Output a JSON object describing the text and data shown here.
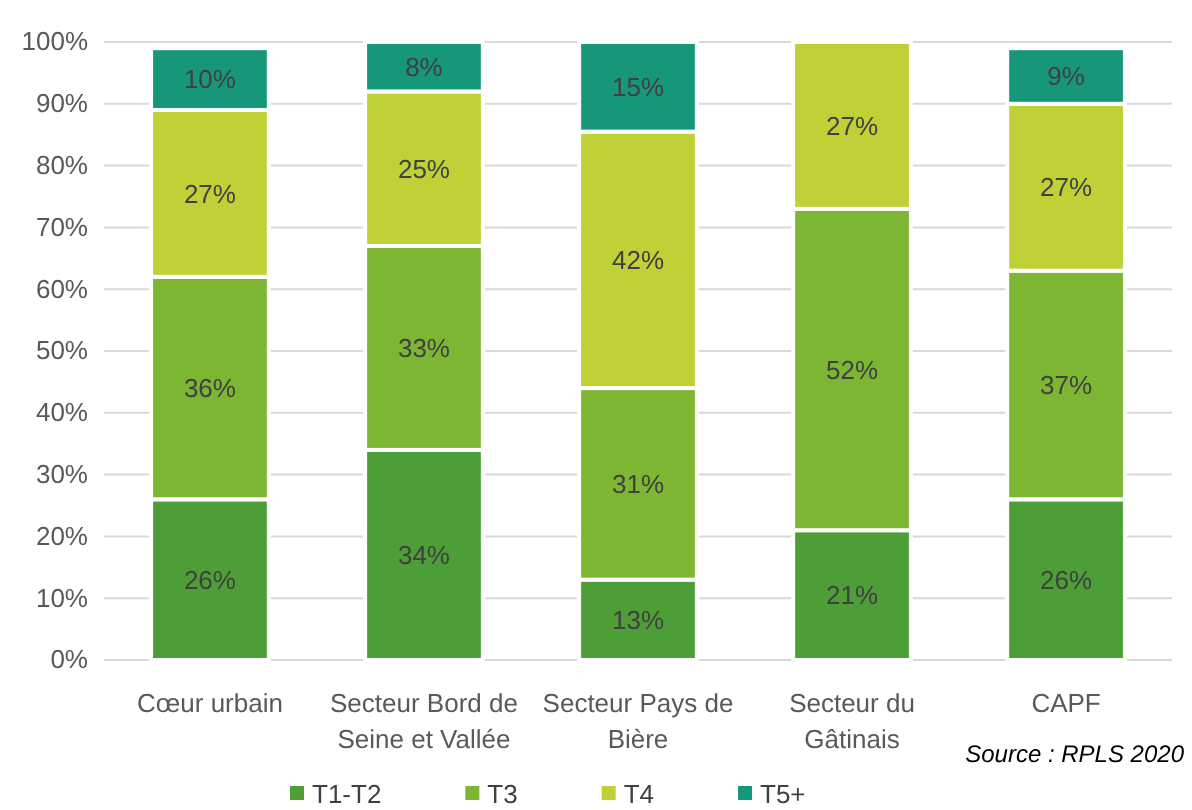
{
  "chart_data": {
    "type": "bar",
    "stacked": true,
    "categories": [
      "Cœur urbain",
      "Secteur Bord de Seine et Vallée",
      "Secteur Pays de Bière",
      "Secteur du Gâtinais",
      "CAPF"
    ],
    "series": [
      {
        "name": "T1-T2",
        "color": "#4e9e37",
        "values": [
          26,
          34,
          13,
          21,
          26
        ],
        "value_labels": [
          "26%",
          "34%",
          "13%",
          "21%",
          "26%"
        ]
      },
      {
        "name": "T3",
        "color": "#7db632",
        "values": [
          36,
          33,
          31,
          52,
          37
        ],
        "value_labels": [
          "36%",
          "33%",
          "31%",
          "52%",
          "37%"
        ]
      },
      {
        "name": "T4",
        "color": "#bfd137",
        "values": [
          27,
          25,
          41.5,
          27,
          27
        ],
        "value_labels": [
          "27%",
          "25%",
          "42%",
          "27%",
          "27%"
        ]
      },
      {
        "name": "T5+",
        "color": "#17977a",
        "values": [
          10,
          8,
          14.5,
          0,
          9
        ],
        "value_labels": [
          "10%",
          "8%",
          "15%",
          null,
          "9%"
        ]
      }
    ],
    "ylim": [
      0,
      100
    ],
    "yticks": [
      {
        "value": 0,
        "label": "0%"
      },
      {
        "value": 10,
        "label": "10%"
      },
      {
        "value": 20,
        "label": "20%"
      },
      {
        "value": 30,
        "label": "30%"
      },
      {
        "value": 40,
        "label": "40%"
      },
      {
        "value": 50,
        "label": "50%"
      },
      {
        "value": 60,
        "label": "60%"
      },
      {
        "value": 70,
        "label": "70%"
      },
      {
        "value": 80,
        "label": "80%"
      },
      {
        "value": 90,
        "label": "90%"
      },
      {
        "value": 100,
        "label": "100%"
      }
    ],
    "grid": "y",
    "legend": "bottom",
    "annotations": [
      "Source : RPLS 2020"
    ]
  }
}
